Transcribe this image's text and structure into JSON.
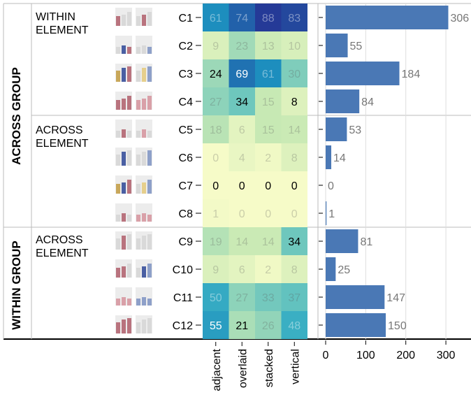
{
  "groups": [
    {
      "label": "ACROSS GROUP",
      "sub": [
        "WITHIN ELEMENT",
        "ACROSS ELEMENT"
      ]
    },
    {
      "label": "WITHIN GROUP",
      "sub": [
        "ACROSS ELEMENT"
      ]
    }
  ],
  "chart_data": [
    {
      "type": "heatmap",
      "rows": [
        "C1",
        "C2",
        "C3",
        "C4",
        "C5",
        "C6",
        "C7",
        "C8",
        "C9",
        "C10",
        "C11",
        "C12"
      ],
      "columns": [
        "adjacent",
        "overlaid",
        "stacked",
        "vertical"
      ],
      "values": [
        [
          61,
          74,
          88,
          83
        ],
        [
          9,
          23,
          13,
          10
        ],
        [
          24,
          69,
          61,
          30
        ],
        [
          27,
          34,
          15,
          8
        ],
        [
          18,
          6,
          15,
          14
        ],
        [
          0,
          4,
          2,
          8
        ],
        [
          0,
          0,
          0,
          0
        ],
        [
          1,
          0,
          0,
          0
        ],
        [
          19,
          14,
          14,
          34
        ],
        [
          9,
          6,
          2,
          8
        ],
        [
          50,
          27,
          33,
          37
        ],
        [
          55,
          21,
          26,
          48
        ]
      ],
      "emphasized": [
        [
          false,
          false,
          false,
          false
        ],
        [
          false,
          false,
          false,
          false
        ],
        [
          true,
          true,
          false,
          false
        ],
        [
          false,
          true,
          false,
          true
        ],
        [
          false,
          false,
          false,
          false
        ],
        [
          false,
          false,
          false,
          false
        ],
        [
          true,
          true,
          true,
          true
        ],
        [
          false,
          false,
          false,
          false
        ],
        [
          false,
          false,
          false,
          true
        ],
        [
          false,
          false,
          false,
          false
        ],
        [
          false,
          false,
          false,
          false
        ],
        [
          true,
          true,
          false,
          false
        ]
      ],
      "color_scale": [
        "#f6fbc8",
        "#c7e9b4",
        "#7fcdbb",
        "#41b6c4",
        "#1d91c0",
        "#225ea8",
        "#253494"
      ],
      "vmax": 90
    },
    {
      "type": "bar",
      "orientation": "horizontal",
      "categories": [
        "C1",
        "C2",
        "C3",
        "C4",
        "C5",
        "C6",
        "C7",
        "C8",
        "C9",
        "C10",
        "C11",
        "C12"
      ],
      "values": [
        306,
        55,
        184,
        84,
        53,
        14,
        0,
        1,
        81,
        25,
        147,
        150
      ],
      "xlim": [
        0,
        340
      ],
      "xticks": [
        0,
        100,
        200,
        300
      ],
      "bar_color": "#4a78b5"
    }
  ],
  "glyphs": [
    {
      "left": [
        "#b9737e",
        "#d9d9d9",
        "#d9d9d9"
      ],
      "right": [
        "#d9d9d9",
        "#b9737e",
        "#d9d9d9"
      ]
    },
    {
      "left": [
        "#d9d9d9",
        "#4a5fa3",
        "#b9737e"
      ],
      "right": [
        "#d9d9d9",
        "#d9d9d9",
        "#8ea0c9"
      ]
    },
    {
      "left": [
        "#c8a75a",
        "#4a5fa3",
        "#b9737e"
      ],
      "right": [
        "#d9d9d9",
        "#e6cf8c",
        "#8ea0c9"
      ]
    },
    {
      "left": [
        "#b9737e",
        "#b9737e",
        "#b9737e"
      ],
      "right": [
        "#d9a0a8",
        "#d9a0a8",
        "#d9a0a8"
      ]
    },
    {
      "left": [
        "#d9d9d9",
        "#b9737e",
        "#d9d9d9"
      ],
      "right": [
        "#d9d9d9",
        "#d9a0a8",
        "#d9d9d9"
      ]
    },
    {
      "left": [
        "#d9d9d9",
        "#4a5fa3",
        "#d9d9d9"
      ],
      "right": [
        "#d9d9d9",
        "#d9d9d9",
        "#8ea0c9"
      ]
    },
    {
      "left": [
        "#c8a75a",
        "#4a5fa3",
        "#b9737e"
      ],
      "right": [
        "#d9d9d9",
        "#e6cf8c",
        "#8ea0c9"
      ]
    },
    {
      "left": [
        "#d9d9d9",
        "#b9737e",
        "#d9d9d9"
      ],
      "right": [
        "#d9a0a8",
        "#d9a0a8",
        "#d9a0a8"
      ]
    },
    {
      "left": [
        "#d9d9d9",
        "#b9737e",
        "#d9d9d9"
      ],
      "right": [
        "#d9d9d9",
        "#d9d9d9",
        "#d9d9d9"
      ]
    },
    {
      "left": [
        "#b9737e",
        "#b9737e",
        "#d9d9d9"
      ],
      "right": [
        "#d9d9d9",
        "#4a5fa3",
        "#8ea0c9"
      ]
    },
    {
      "left": [
        "#d9a0a8",
        "#d9a0a8",
        "#d9a0a8"
      ],
      "right": [
        "#8ea0c9",
        "#8ea0c9",
        "#8ea0c9"
      ]
    },
    {
      "left": [
        "#b9737e",
        "#b9737e",
        "#b9737e"
      ],
      "right": [
        "#d9d9d9",
        "#d9d9d9",
        "#d9d9d9"
      ]
    }
  ]
}
